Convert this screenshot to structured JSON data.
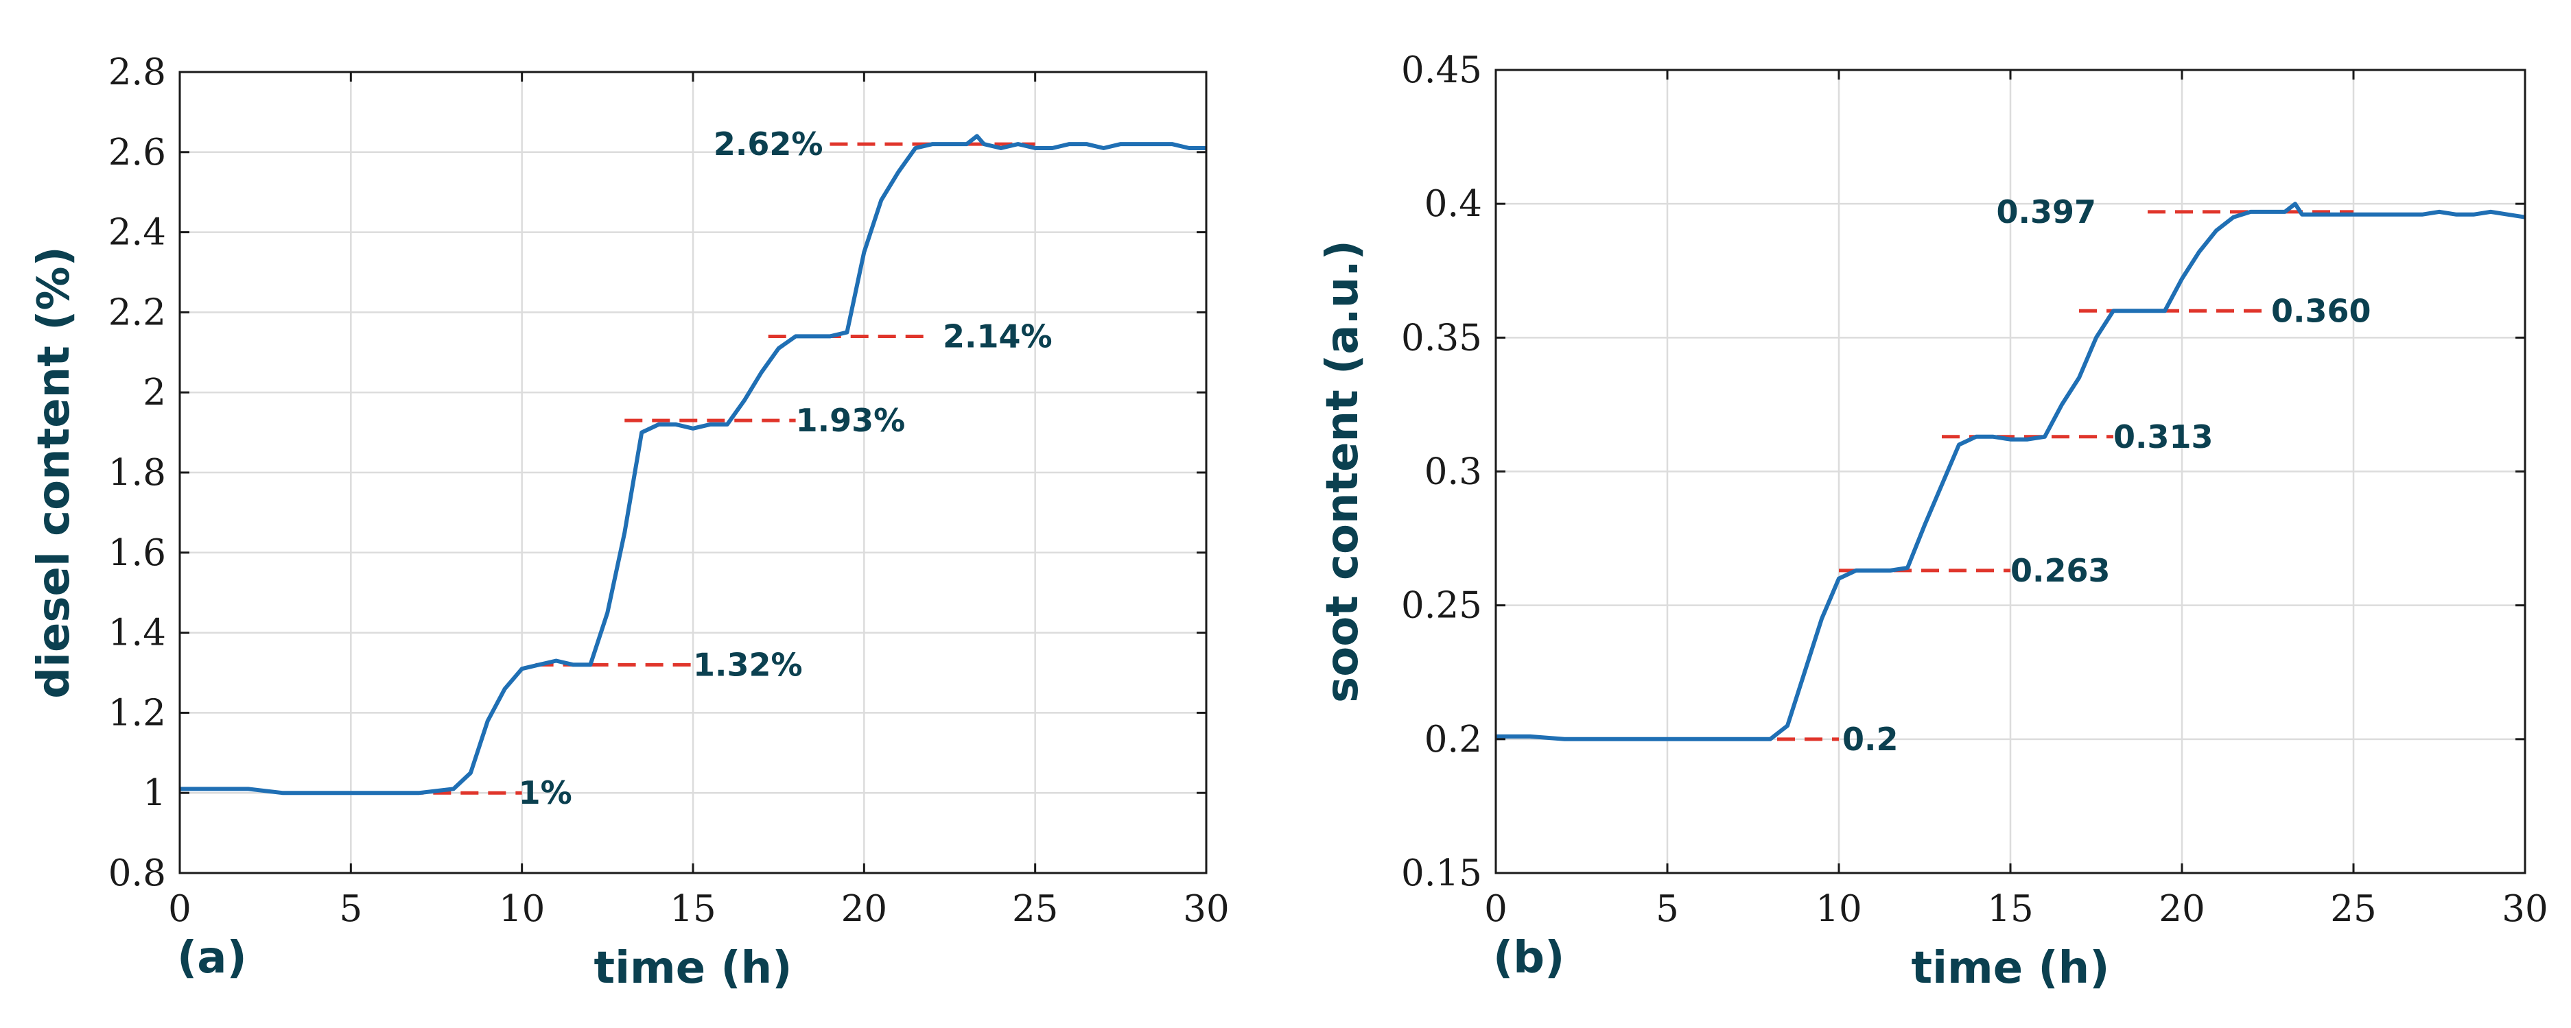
{
  "colors": {
    "line": "#1f6fb4",
    "ref": "#e0352b",
    "label": "#0b4050",
    "axis": "#1a1a1a",
    "grid": "#dcdcdc"
  },
  "chart_data": [
    {
      "type": "line",
      "panel_label": "(a)",
      "xlabel": "time (h)",
      "ylabel": "diesel content (%)",
      "xlim": [
        0,
        30
      ],
      "ylim": [
        0.8,
        2.8
      ],
      "xticks": [
        0,
        5,
        10,
        15,
        20,
        25,
        30
      ],
      "xtick_labels": [
        "0",
        "5",
        "10",
        "15",
        "20",
        "25",
        "30"
      ],
      "yticks": [
        0.8,
        1,
        1.2,
        1.4,
        1.6,
        1.8,
        2,
        2.2,
        2.4,
        2.6,
        2.8
      ],
      "ytick_labels": [
        "0.8",
        "1",
        "1.2",
        "1.4",
        "1.6",
        "1.8",
        "2",
        "2.2",
        "2.4",
        "2.6",
        "2.8"
      ],
      "grid": true,
      "series": [
        {
          "name": "diesel content",
          "x": [
            0,
            1,
            2,
            3,
            4,
            5,
            6,
            7,
            8,
            8.5,
            9,
            9.5,
            10,
            10.5,
            11,
            11.5,
            12,
            12.5,
            13,
            13.5,
            14,
            14.5,
            15,
            15.5,
            16,
            16.5,
            17,
            17.5,
            18,
            18.5,
            19,
            19.5,
            20,
            20.5,
            21,
            21.5,
            22,
            22.5,
            23,
            23.3,
            23.5,
            24,
            24.5,
            25,
            25.5,
            26,
            26.5,
            27,
            27.5,
            28,
            28.5,
            29,
            29.5,
            30
          ],
          "y": [
            1.01,
            1.01,
            1.01,
            1.0,
            1.0,
            1.0,
            1.0,
            1.0,
            1.01,
            1.05,
            1.18,
            1.26,
            1.31,
            1.32,
            1.33,
            1.32,
            1.32,
            1.45,
            1.65,
            1.9,
            1.92,
            1.92,
            1.91,
            1.92,
            1.92,
            1.98,
            2.05,
            2.11,
            2.14,
            2.14,
            2.14,
            2.15,
            2.35,
            2.48,
            2.55,
            2.61,
            2.62,
            2.62,
            2.62,
            2.64,
            2.62,
            2.61,
            2.62,
            2.61,
            2.61,
            2.62,
            2.62,
            2.61,
            2.62,
            2.62,
            2.62,
            2.62,
            2.61,
            2.61
          ]
        }
      ],
      "references": [
        {
          "value": 1.0,
          "x_range": [
            5,
            10
          ],
          "label": "1%",
          "label_x": 9.9,
          "anchor": "start"
        },
        {
          "value": 1.32,
          "x_range": [
            10.4,
            15
          ],
          "label": "1.32%",
          "label_x": 15,
          "anchor": "start"
        },
        {
          "value": 1.93,
          "x_range": [
            13,
            18
          ],
          "label": "1.93%",
          "label_x": 18,
          "anchor": "start"
        },
        {
          "value": 2.14,
          "x_range": [
            17.2,
            22
          ],
          "label": "2.14%",
          "label_x": 22.3,
          "anchor": "start"
        },
        {
          "value": 2.62,
          "x_range": [
            19,
            25
          ],
          "label": "2.62%",
          "label_x": 18.8,
          "anchor": "end"
        }
      ]
    },
    {
      "type": "line",
      "panel_label": "(b)",
      "xlabel": "time (h)",
      "ylabel": "soot content (a.u.)",
      "xlim": [
        0,
        30
      ],
      "ylim": [
        0.15,
        0.45
      ],
      "xticks": [
        0,
        5,
        10,
        15,
        20,
        25,
        30
      ],
      "xtick_labels": [
        "0",
        "5",
        "10",
        "15",
        "20",
        "25",
        "30"
      ],
      "yticks": [
        0.15,
        0.2,
        0.25,
        0.3,
        0.35,
        0.4,
        0.45
      ],
      "ytick_labels": [
        "0.15",
        "0.2",
        "0.25",
        "0.3",
        "0.35",
        "0.4",
        "0.45"
      ],
      "grid": true,
      "series": [
        {
          "name": "soot content",
          "x": [
            0,
            1,
            2,
            3,
            4,
            5,
            6,
            7,
            8,
            8.5,
            9,
            9.5,
            10,
            10.5,
            11,
            11.5,
            12,
            12.5,
            13,
            13.5,
            14,
            14.5,
            15,
            15.5,
            16,
            16.5,
            17,
            17.5,
            18,
            18.5,
            19,
            19.5,
            20,
            20.5,
            21,
            21.5,
            22,
            22.5,
            23,
            23.3,
            23.5,
            24,
            24.5,
            25,
            25.5,
            26,
            26.5,
            27,
            27.5,
            28,
            28.5,
            29,
            29.5,
            30
          ],
          "y": [
            0.201,
            0.201,
            0.2,
            0.2,
            0.2,
            0.2,
            0.2,
            0.2,
            0.2,
            0.205,
            0.225,
            0.245,
            0.26,
            0.263,
            0.263,
            0.263,
            0.264,
            0.28,
            0.295,
            0.31,
            0.313,
            0.313,
            0.312,
            0.312,
            0.313,
            0.325,
            0.335,
            0.35,
            0.36,
            0.36,
            0.36,
            0.36,
            0.372,
            0.382,
            0.39,
            0.395,
            0.397,
            0.397,
            0.397,
            0.4,
            0.396,
            0.396,
            0.396,
            0.396,
            0.396,
            0.396,
            0.396,
            0.396,
            0.397,
            0.396,
            0.396,
            0.397,
            0.396,
            0.395
          ]
        }
      ],
      "references": [
        {
          "value": 0.2,
          "x_range": [
            5,
            10
          ],
          "label": "0.2",
          "label_x": 10.1,
          "anchor": "start"
        },
        {
          "value": 0.263,
          "x_range": [
            10,
            15
          ],
          "label": "0.263",
          "label_x": 15,
          "anchor": "start"
        },
        {
          "value": 0.313,
          "x_range": [
            13,
            18
          ],
          "label": "0.313",
          "label_x": 18,
          "anchor": "start"
        },
        {
          "value": 0.36,
          "x_range": [
            17,
            22.5
          ],
          "label": "0.360",
          "label_x": 22.6,
          "anchor": "start"
        },
        {
          "value": 0.397,
          "x_range": [
            19,
            25
          ],
          "label": "0.397",
          "label_x": 17.5,
          "anchor": "end"
        }
      ]
    }
  ]
}
